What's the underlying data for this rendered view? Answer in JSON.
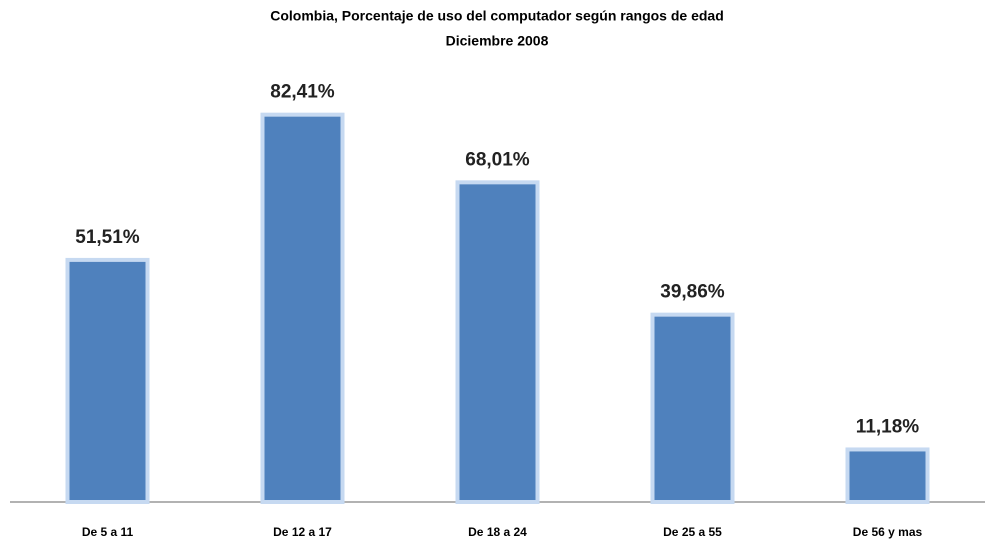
{
  "chart_data": {
    "type": "bar",
    "title": "Colombia, Porcentaje de uso del computador según rangos de edad",
    "subtitle": "Diciembre 2008",
    "categories": [
      "De 5 a 11",
      "De 12 a 17",
      "De 18 a 24",
      "De 25 a 55",
      "De 56 y mas"
    ],
    "values": [
      51.51,
      82.41,
      68.01,
      39.86,
      11.18
    ],
    "value_labels": [
      "51,51%",
      "82,41%",
      "68,01%",
      "39,86%",
      "11,18%"
    ],
    "color": "#4f81bd",
    "ylim": [
      0,
      90
    ]
  }
}
